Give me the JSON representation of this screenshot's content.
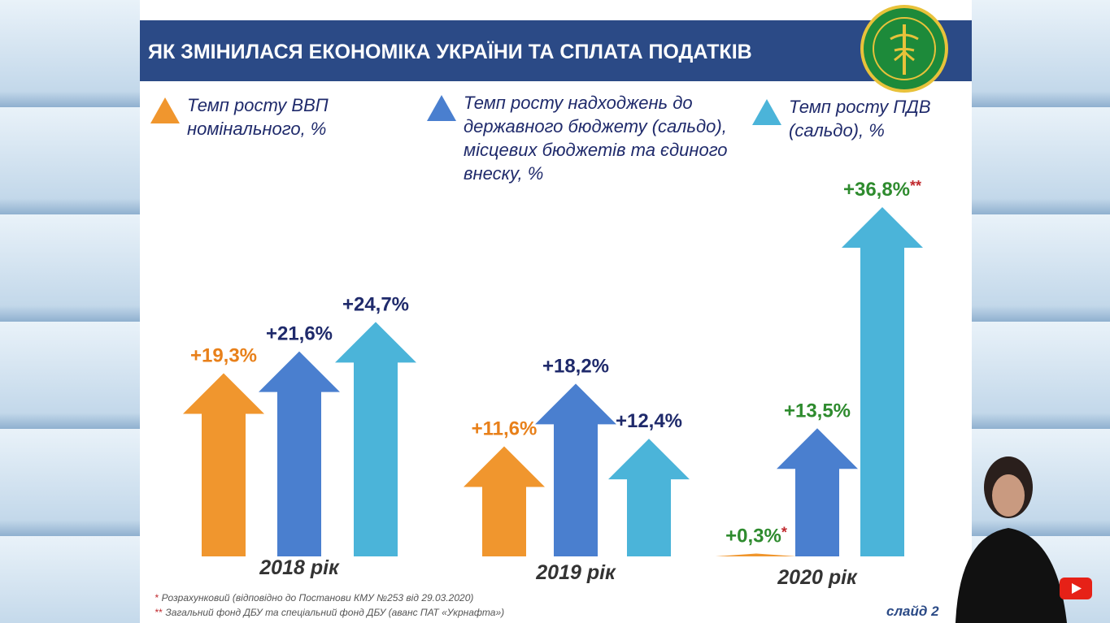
{
  "chart_data": {
    "type": "arrow",
    "title": "ЯК ЗМІНИЛАСЯ ЕКОНОМІКА УКРАЇНИ ТА СПЛАТА ПОДАТКІВ",
    "categories": [
      "2018 рік",
      "2019 рік",
      "2020 рік"
    ],
    "category_label_colors": [
      null,
      null,
      "#2e8b2e"
    ],
    "series": [
      {
        "name": "Темп росту ВВП номінального, %",
        "color": "#f0962e",
        "label_color": "#e8801a",
        "values": [
          19.3,
          11.6,
          0.3
        ],
        "value_labels": [
          "+19,3%",
          "+11,6%",
          "+0,3%"
        ],
        "value_notes": [
          null,
          null,
          "*"
        ]
      },
      {
        "name": "Темп росту надходжень до державного бюджету (сальдо), місцевих бюджетів та єдиного внеску, %",
        "color": "#4a7fcf",
        "label_color": "#1f2a6b",
        "values": [
          21.6,
          18.2,
          13.5
        ],
        "value_labels": [
          "+21,6%",
          "+18,2%",
          "+13,5%"
        ],
        "value_notes": [
          null,
          null,
          null
        ]
      },
      {
        "name": "Темп росту ПДВ (сальдо), %",
        "color": "#4bb4d9",
        "label_color": "#1f2a6b",
        "values": [
          24.7,
          12.4,
          36.8
        ],
        "value_labels": [
          "+24,7%",
          "+12,4%",
          "+36,8%"
        ],
        "value_notes": [
          null,
          null,
          "**"
        ]
      }
    ],
    "footnotes": [
      {
        "mark": "*",
        "text": "Розрахунковий (відповідно до Постанови КМУ №253 від 29.03.2020)"
      },
      {
        "mark": "**",
        "text": "Загальний фонд ДБУ та спеціальний фонд ДБУ (аванс ПАТ «Укрнафта»)"
      }
    ],
    "slide": "слайд 2"
  }
}
